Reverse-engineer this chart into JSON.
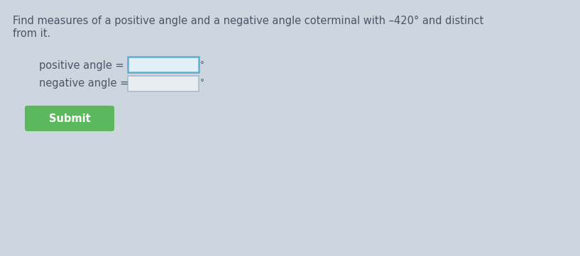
{
  "bg_color": "#cdd5de",
  "title_line1": "Find measures of a positive angle and a negative angle coterminal with –420° and distinct",
  "title_line2": "from it.",
  "label_positive": "positive angle =",
  "label_negative": "negative angle =",
  "degree_symbol": "°",
  "submit_text": "Submit",
  "submit_bg": "#5cb85c",
  "submit_fg": "#ffffff",
  "text_color": "#4a5568",
  "box_border_color_pos": "#5bafd6",
  "box_border_color_neg": "#aabbc8",
  "box_fill_color_pos": "#dff0f8",
  "box_fill_color_neg": "#e8edf2",
  "title_fontsize": 10.5,
  "label_fontsize": 10.5,
  "submit_fontsize": 10.5,
  "fig_width": 8.17,
  "fig_height": 3.61,
  "dpi": 100
}
